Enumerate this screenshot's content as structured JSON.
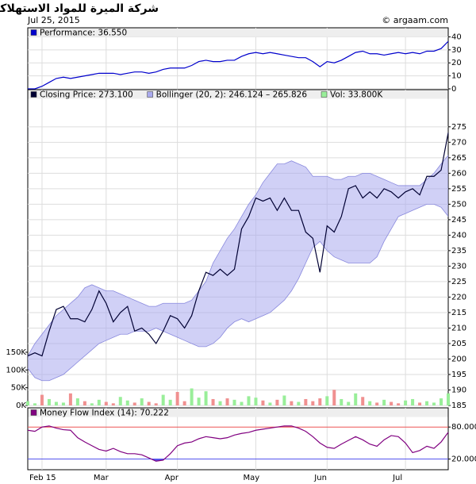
{
  "header": {
    "title": "شركة الميرة للمواد الاستهلاكية",
    "date": "Jul 25, 2015",
    "source": "© argaam.com"
  },
  "chart_data": [
    {
      "type": "line",
      "ylim": [
        0,
        47
      ],
      "yticks": [
        0,
        10,
        20,
        30,
        40
      ],
      "grid": true,
      "series": [
        {
          "name": "Performance: 36.550",
          "color": "#0000cc",
          "values": [
            0,
            0,
            2,
            5,
            8,
            9,
            8,
            9,
            10,
            11,
            12,
            12,
            12,
            11,
            12,
            13,
            13,
            12,
            13,
            15,
            16,
            16,
            16,
            18,
            21,
            22,
            21,
            21,
            22,
            22,
            25,
            27,
            28,
            27,
            28,
            27,
            26,
            25,
            24,
            24,
            21,
            17,
            21,
            20,
            22,
            25,
            28,
            29,
            27,
            27,
            26,
            27,
            28,
            27,
            28,
            27,
            29,
            29,
            31,
            36.55
          ]
        }
      ]
    },
    {
      "type": "line",
      "ylim": [
        185,
        287
      ],
      "yticks": [
        185,
        190,
        195,
        200,
        205,
        210,
        215,
        220,
        225,
        230,
        235,
        240,
        245,
        250,
        255,
        260,
        265,
        270,
        275
      ],
      "grid": true,
      "y2lim": [
        0,
        890
      ],
      "y2ticks": [
        {
          "value": 0,
          "label": "0K"
        },
        {
          "value": 50,
          "label": "50K"
        },
        {
          "value": 100,
          "label": "100K"
        },
        {
          "value": 150,
          "label": "150K"
        }
      ],
      "up_color": "#99ee99",
      "down_color": "#f09090",
      "series": [
        {
          "name": "Closing Price: 273.100",
          "type": "line",
          "color": "#000033",
          "values": [
            201,
            202,
            201,
            209,
            216,
            217,
            213,
            213,
            212,
            216,
            222,
            218,
            212,
            215,
            217,
            209,
            210,
            208,
            205,
            209,
            214,
            213,
            210,
            214,
            222,
            228,
            227,
            229,
            227,
            229,
            242,
            246,
            252,
            251,
            252,
            248,
            252,
            248,
            248,
            241,
            239,
            228,
            243,
            241,
            246,
            255,
            256,
            252,
            254,
            252,
            255,
            254,
            252,
            254,
            255,
            253,
            259,
            259,
            261,
            273.1
          ]
        },
        {
          "name": "Bollinger (20, 2): 246.124 – 265.826",
          "type": "band",
          "color": "#aaaaee",
          "upper": [
            201,
            205,
            208,
            211,
            214,
            216,
            218,
            220,
            223,
            224,
            223,
            222,
            222,
            221,
            220,
            219,
            218,
            217,
            217,
            218,
            218,
            218,
            218,
            219,
            222,
            225,
            231,
            235,
            239,
            242,
            246,
            250,
            253,
            257,
            260,
            263,
            263,
            264,
            263,
            262,
            259,
            259,
            259,
            258,
            258,
            259,
            259,
            260,
            260,
            259,
            258,
            257,
            256,
            256,
            256,
            256,
            258,
            260,
            263,
            265.8
          ],
          "lower": [
            197,
            194,
            193,
            193,
            194,
            195,
            197,
            199,
            201,
            203,
            205,
            206,
            207,
            208,
            208,
            209,
            209,
            209,
            210,
            209,
            208,
            207,
            206,
            205,
            204,
            204,
            205,
            207,
            210,
            212,
            213,
            212,
            213,
            214,
            215,
            217,
            219,
            222,
            226,
            231,
            236,
            238,
            235,
            233,
            232,
            231,
            231,
            231,
            231,
            233,
            238,
            242,
            246,
            247,
            248,
            249,
            250,
            250,
            249,
            246.1
          ]
        },
        {
          "name": "Vol: 33.800K",
          "type": "bar",
          "axis": "y2",
          "color": "#99ee99",
          "values": [
            12,
            6,
            30,
            18,
            10,
            8,
            34,
            20,
            12,
            6,
            16,
            10,
            6,
            24,
            14,
            8,
            20,
            10,
            6,
            30,
            16,
            38,
            12,
            48,
            22,
            40,
            18,
            12,
            20,
            16,
            10,
            26,
            22,
            14,
            8,
            16,
            28,
            12,
            10,
            18,
            12,
            20,
            26,
            44,
            18,
            10,
            34,
            24,
            12,
            8,
            16,
            10,
            6,
            14,
            18,
            8,
            12,
            8,
            20,
            34
          ]
        }
      ]
    },
    {
      "type": "line",
      "ylim": [
        0,
        116
      ],
      "yticks": [
        {
          "value": 20,
          "label": "20.000"
        },
        {
          "value": 80,
          "label": "80.000"
        }
      ],
      "tick_colors": [
        "#5555ee",
        "#ee5555"
      ],
      "grid": true,
      "categories": [
        null,
        null,
        "Feb 15",
        null,
        null,
        null,
        null,
        null,
        null,
        null,
        null,
        "Mar",
        null,
        null,
        null,
        null,
        null,
        null,
        null,
        null,
        null,
        "Apr",
        null,
        null,
        null,
        null,
        null,
        null,
        null,
        null,
        null,
        null,
        "May",
        null,
        null,
        null,
        null,
        null,
        null,
        null,
        null,
        null,
        "Jun",
        null,
        null,
        null,
        null,
        null,
        null,
        null,
        null,
        null,
        null,
        "Jul",
        null,
        null,
        null,
        null,
        null,
        null
      ],
      "series": [
        {
          "name": "Money Flow Index (14): 70.222",
          "color": "#800080",
          "values": [
            74,
            72,
            80,
            82,
            78,
            75,
            74,
            60,
            52,
            45,
            38,
            35,
            40,
            34,
            30,
            30,
            28,
            22,
            16,
            18,
            30,
            45,
            50,
            52,
            58,
            62,
            60,
            58,
            60,
            65,
            68,
            70,
            74,
            76,
            78,
            80,
            82,
            82,
            78,
            72,
            62,
            50,
            42,
            40,
            48,
            55,
            62,
            56,
            48,
            44,
            56,
            64,
            62,
            50,
            32,
            36,
            44,
            40,
            52,
            70.2
          ]
        }
      ]
    }
  ]
}
